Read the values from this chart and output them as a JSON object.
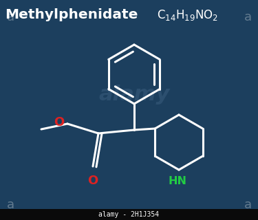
{
  "bg_color": "#1c3f5e",
  "bg_gradient_top": "#173352",
  "bg_gradient_bot": "#1e4060",
  "title_left": "Methylphenidate",
  "formula": "C$_{14}$H$_{19}$NO$_{2}$",
  "line_color": "white",
  "line_width": 2.2,
  "O_color": "#dd2222",
  "N_color": "#22cc44",
  "bottom_text": "alamy - 2H1J354",
  "bottom_bg": "#0a0a0a",
  "watermark": "alamy",
  "watermark_color": "#3d6080",
  "corner_a_color": "#7a8fa0"
}
